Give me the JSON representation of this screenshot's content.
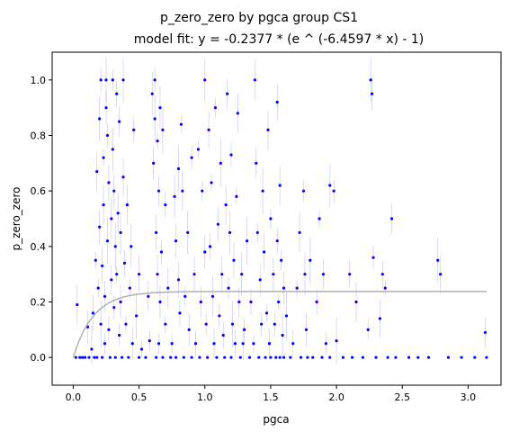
{
  "chart_data": {
    "type": "scatter",
    "title": "p_zero_zero by pgca group CS1",
    "subtitle": "model fit: y = -0.2377 * (e ^ (-6.4597 * x) - 1)",
    "xlabel": "pgca",
    "ylabel": "p_zero_zero",
    "xlim": [
      -0.16,
      3.25
    ],
    "ylim": [
      -0.1,
      1.1
    ],
    "x_ticks": [
      0.0,
      0.5,
      1.0,
      1.5,
      2.0,
      2.5,
      3.0
    ],
    "x_tick_labels": [
      "0.0",
      "0.5",
      "1.0",
      "1.5",
      "2.0",
      "2.5",
      "3.0"
    ],
    "y_ticks": [
      0.0,
      0.2,
      0.4,
      0.6,
      0.8,
      1.0
    ],
    "y_tick_labels": [
      "0.0",
      "0.2",
      "0.4",
      "0.6",
      "0.8",
      "1.0"
    ],
    "grid": false,
    "model": {
      "a": -0.2377,
      "b": -6.4597,
      "x_range": [
        0.0,
        3.14
      ]
    },
    "colors": {
      "points": "#0000ff",
      "errorbars": "#8c8cff",
      "fit": "#b0b0b0"
    },
    "series": [
      {
        "points": [
          [
            0.02,
            0.0
          ],
          [
            0.03,
            0.19
          ],
          [
            0.05,
            0.0
          ],
          [
            0.07,
            0.0
          ],
          [
            0.09,
            0.0
          ],
          [
            0.11,
            0.11
          ],
          [
            0.12,
            0.0
          ],
          [
            0.14,
            0.03
          ],
          [
            0.15,
            0.16
          ],
          [
            0.16,
            0.0
          ],
          [
            0.17,
            0.35
          ],
          [
            0.18,
            0.67
          ],
          [
            0.18,
            0.0
          ],
          [
            0.19,
            0.25
          ],
          [
            0.2,
            0.86
          ],
          [
            0.2,
            0.47
          ],
          [
            0.21,
            1.0
          ],
          [
            0.21,
            0.12
          ],
          [
            0.22,
            0.33
          ],
          [
            0.22,
            0.0
          ],
          [
            0.23,
            0.72
          ],
          [
            0.23,
            0.55
          ],
          [
            0.24,
            0.22
          ],
          [
            0.24,
            0.05
          ],
          [
            0.25,
            1.0
          ],
          [
            0.25,
            0.9
          ],
          [
            0.26,
            0.8
          ],
          [
            0.26,
            0.42
          ],
          [
            0.27,
            0.63
          ],
          [
            0.27,
            0.1
          ],
          [
            0.28,
            0.0
          ],
          [
            0.29,
            0.5
          ],
          [
            0.29,
            0.28
          ],
          [
            0.3,
            1.0
          ],
          [
            0.3,
            0.75
          ],
          [
            0.31,
            0.6
          ],
          [
            0.31,
            0.18
          ],
          [
            0.32,
            0.4
          ],
          [
            0.32,
            0.0
          ],
          [
            0.33,
            0.95
          ],
          [
            0.33,
            0.3
          ],
          [
            0.34,
            0.52
          ],
          [
            0.35,
            0.85
          ],
          [
            0.35,
            0.08
          ],
          [
            0.36,
            0.45
          ],
          [
            0.36,
            0.2
          ],
          [
            0.37,
            0.0
          ],
          [
            0.38,
            1.0
          ],
          [
            0.38,
            0.65
          ],
          [
            0.39,
            0.34
          ],
          [
            0.4,
            0.12
          ],
          [
            0.41,
            0.55
          ],
          [
            0.42,
            0.0
          ],
          [
            0.43,
            0.25
          ],
          [
            0.44,
            0.4
          ],
          [
            0.45,
            0.05
          ],
          [
            0.46,
            0.82
          ],
          [
            0.48,
            0.15
          ],
          [
            0.5,
            0.3
          ],
          [
            0.5,
            0.0
          ],
          [
            0.52,
            0.03
          ],
          [
            0.55,
            0.0
          ],
          [
            0.57,
            0.22
          ],
          [
            0.58,
            0.06
          ],
          [
            0.6,
            0.95
          ],
          [
            0.61,
            0.7
          ],
          [
            0.62,
            1.0
          ],
          [
            0.62,
            0.86
          ],
          [
            0.63,
            0.45
          ],
          [
            0.63,
            0.0
          ],
          [
            0.64,
            0.78
          ],
          [
            0.64,
            0.3
          ],
          [
            0.65,
            0.6
          ],
          [
            0.65,
            0.05
          ],
          [
            0.66,
            0.9
          ],
          [
            0.66,
            0.2
          ],
          [
            0.67,
            0.38
          ],
          [
            0.68,
            0.82
          ],
          [
            0.68,
            0.0
          ],
          [
            0.7,
            0.55
          ],
          [
            0.7,
            0.12
          ],
          [
            0.72,
            0.25
          ],
          [
            0.74,
            0.0
          ],
          [
            0.75,
            0.05
          ],
          [
            0.77,
            0.58
          ],
          [
            0.78,
            0.42
          ],
          [
            0.78,
            0.0
          ],
          [
            0.8,
            0.68
          ],
          [
            0.8,
            0.28
          ],
          [
            0.81,
            0.16
          ],
          [
            0.82,
            0.84
          ],
          [
            0.83,
            0.6
          ],
          [
            0.84,
            0.0
          ],
          [
            0.85,
            0.22
          ],
          [
            0.87,
            0.45
          ],
          [
            0.88,
            0.1
          ],
          [
            0.9,
            0.72
          ],
          [
            0.9,
            0.0
          ],
          [
            0.92,
            0.3
          ],
          [
            0.93,
            0.05
          ],
          [
            0.95,
            0.75
          ],
          [
            0.96,
            0.0
          ],
          [
            0.97,
            0.2
          ],
          [
            0.98,
            0.6
          ],
          [
            1.0,
            1.0
          ],
          [
            1.0,
            0.38
          ],
          [
            1.01,
            0.12
          ],
          [
            1.02,
            0.0
          ],
          [
            1.03,
            0.82
          ],
          [
            1.04,
            0.4
          ],
          [
            1.05,
            0.63
          ],
          [
            1.06,
            0.22
          ],
          [
            1.07,
            0.05
          ],
          [
            1.08,
            0.9
          ],
          [
            1.09,
            0.0
          ],
          [
            1.1,
            0.48
          ],
          [
            1.11,
            0.15
          ],
          [
            1.12,
            0.7
          ],
          [
            1.13,
            0.3
          ],
          [
            1.14,
            0.08
          ],
          [
            1.15,
            0.0
          ],
          [
            1.16,
            0.55
          ],
          [
            1.17,
            0.95
          ],
          [
            1.18,
            0.25
          ],
          [
            1.19,
            0.45
          ],
          [
            1.2,
            0.0
          ],
          [
            1.2,
            0.73
          ],
          [
            1.21,
            0.12
          ],
          [
            1.22,
            0.35
          ],
          [
            1.23,
            0.05
          ],
          [
            1.24,
            0.58
          ],
          [
            1.25,
            0.88
          ],
          [
            1.26,
            0.2
          ],
          [
            1.27,
            0.0
          ],
          [
            1.28,
            0.3
          ],
          [
            1.29,
            0.05
          ],
          [
            1.3,
            0.1
          ],
          [
            1.32,
            0.42
          ],
          [
            1.34,
            0.0
          ],
          [
            1.35,
            0.2
          ],
          [
            1.37,
            0.05
          ],
          [
            1.38,
            1.0
          ],
          [
            1.39,
            0.7
          ],
          [
            1.4,
            0.45
          ],
          [
            1.41,
            0.0
          ],
          [
            1.42,
            0.28
          ],
          [
            1.43,
            0.12
          ],
          [
            1.44,
            0.6
          ],
          [
            1.45,
            0.38
          ],
          [
            1.46,
            0.0
          ],
          [
            1.47,
            0.16
          ],
          [
            1.48,
            0.82
          ],
          [
            1.49,
            0.05
          ],
          [
            1.5,
            0.5
          ],
          [
            1.5,
            0.0
          ],
          [
            1.52,
            0.3
          ],
          [
            1.53,
            0.12
          ],
          [
            1.54,
            0.0
          ],
          [
            1.55,
            0.92
          ],
          [
            1.55,
            0.42
          ],
          [
            1.56,
            0.2
          ],
          [
            1.57,
            0.62
          ],
          [
            1.57,
            0.0
          ],
          [
            1.58,
            0.35
          ],
          [
            1.59,
            0.08
          ],
          [
            1.6,
            0.25
          ],
          [
            1.6,
            0.0
          ],
          [
            1.62,
            0.15
          ],
          [
            1.65,
            0.0
          ],
          [
            1.67,
            0.05
          ],
          [
            1.7,
            0.25
          ],
          [
            1.72,
            0.45
          ],
          [
            1.73,
            0.0
          ],
          [
            1.75,
            0.6
          ],
          [
            1.76,
            0.3
          ],
          [
            1.77,
            0.1
          ],
          [
            1.78,
            0.0
          ],
          [
            1.8,
            0.35
          ],
          [
            1.82,
            0.0
          ],
          [
            1.85,
            0.2
          ],
          [
            1.87,
            0.5
          ],
          [
            1.89,
            0.0
          ],
          [
            1.9,
            0.3
          ],
          [
            1.92,
            0.05
          ],
          [
            1.95,
            0.62
          ],
          [
            1.95,
            0.0
          ],
          [
            1.98,
            0.6
          ],
          [
            2.0,
            0.06
          ],
          [
            2.05,
            0.0
          ],
          [
            2.1,
            0.3
          ],
          [
            2.12,
            0.0
          ],
          [
            2.15,
            0.2
          ],
          [
            2.2,
            0.0
          ],
          [
            2.24,
            0.1
          ],
          [
            2.26,
            1.0
          ],
          [
            2.27,
            0.95
          ],
          [
            2.28,
            0.36
          ],
          [
            2.3,
            0.0
          ],
          [
            2.33,
            0.14
          ],
          [
            2.35,
            0.3
          ],
          [
            2.37,
            0.25
          ],
          [
            2.39,
            0.0
          ],
          [
            2.42,
            0.5
          ],
          [
            2.45,
            0.0
          ],
          [
            2.55,
            0.0
          ],
          [
            2.62,
            0.0
          ],
          [
            2.7,
            0.0
          ],
          [
            2.77,
            0.35
          ],
          [
            2.79,
            0.3
          ],
          [
            2.85,
            0.0
          ],
          [
            2.95,
            0.0
          ],
          [
            3.05,
            0.0
          ],
          [
            3.13,
            0.09
          ],
          [
            3.14,
            0.0
          ]
        ]
      }
    ]
  }
}
